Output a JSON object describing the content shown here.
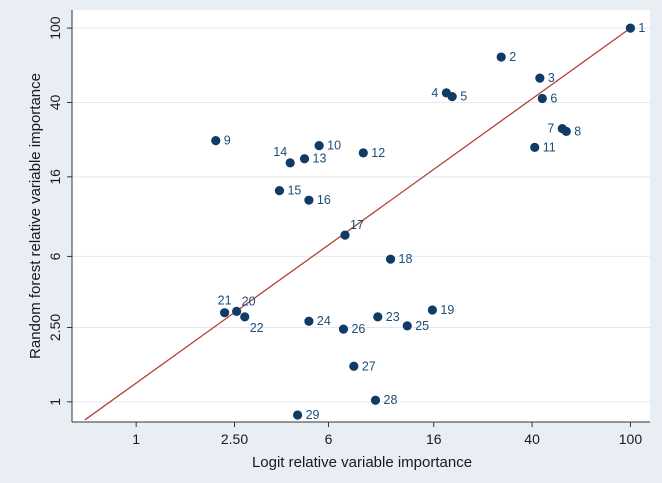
{
  "chart_data": {
    "type": "scatter",
    "title": "",
    "xlabel": "Logit relative variable importance",
    "ylabel": "Random forest relative variable importance",
    "x_scale": "log",
    "y_scale": "log",
    "xlim": [
      0.55,
      120
    ],
    "ylim": [
      0.78,
      125
    ],
    "x_ticks": [
      1,
      2.5,
      6,
      16,
      40,
      100
    ],
    "x_tick_labels": [
      "1",
      "2.50",
      "6",
      "16",
      "40",
      "100"
    ],
    "y_ticks": [
      1,
      2.5,
      6,
      16,
      40,
      100
    ],
    "y_tick_labels": [
      "1",
      "2.50",
      "6",
      "16",
      "40",
      "100"
    ],
    "grid": "horizontal",
    "legend": "none",
    "reference_line": {
      "from": [
        0.62,
        0.8
      ],
      "to": [
        100,
        100
      ]
    },
    "colors": {
      "points": "#0f3b66",
      "line": "#b5403a",
      "labels": "#1a4f7a",
      "plot_bg": "#ffffff",
      "page_bg": "#e8eef4"
    },
    "points": [
      {
        "label": "1",
        "x": 100,
        "y": 100,
        "pos": "right"
      },
      {
        "label": "2",
        "x": 30,
        "y": 70,
        "pos": "right"
      },
      {
        "label": "3",
        "x": 43,
        "y": 54,
        "pos": "right"
      },
      {
        "label": "4",
        "x": 18,
        "y": 45,
        "pos": "left"
      },
      {
        "label": "5",
        "x": 19,
        "y": 43,
        "pos": "right"
      },
      {
        "label": "6",
        "x": 44,
        "y": 42,
        "pos": "right"
      },
      {
        "label": "7",
        "x": 53,
        "y": 29,
        "pos": "left"
      },
      {
        "label": "8",
        "x": 55,
        "y": 28,
        "pos": "right"
      },
      {
        "label": "9",
        "x": 2.1,
        "y": 25,
        "pos": "right"
      },
      {
        "label": "10",
        "x": 5.5,
        "y": 23.5,
        "pos": "right"
      },
      {
        "label": "11",
        "x": 41,
        "y": 23,
        "pos": "right"
      },
      {
        "label": "12",
        "x": 8.3,
        "y": 21.5,
        "pos": "right"
      },
      {
        "label": "13",
        "x": 4.8,
        "y": 20,
        "pos": "right"
      },
      {
        "label": "14",
        "x": 4.2,
        "y": 19,
        "pos": "top-left"
      },
      {
        "label": "15",
        "x": 3.8,
        "y": 13.5,
        "pos": "right"
      },
      {
        "label": "16",
        "x": 5.0,
        "y": 12,
        "pos": "right"
      },
      {
        "label": "17",
        "x": 7.0,
        "y": 7.8,
        "pos": "top-right"
      },
      {
        "label": "18",
        "x": 10.7,
        "y": 5.8,
        "pos": "right"
      },
      {
        "label": "19",
        "x": 15.8,
        "y": 3.1,
        "pos": "right"
      },
      {
        "label": "20",
        "x": 2.55,
        "y": 3.05,
        "pos": "top-right"
      },
      {
        "label": "21",
        "x": 2.28,
        "y": 3.0,
        "pos": "top"
      },
      {
        "label": "22",
        "x": 2.75,
        "y": 2.85,
        "pos": "bottom-right"
      },
      {
        "label": "23",
        "x": 9.5,
        "y": 2.85,
        "pos": "right"
      },
      {
        "label": "24",
        "x": 5.0,
        "y": 2.7,
        "pos": "right"
      },
      {
        "label": "25",
        "x": 12.5,
        "y": 2.55,
        "pos": "right"
      },
      {
        "label": "26",
        "x": 6.9,
        "y": 2.45,
        "pos": "right"
      },
      {
        "label": "27",
        "x": 7.6,
        "y": 1.55,
        "pos": "right"
      },
      {
        "label": "28",
        "x": 9.3,
        "y": 1.02,
        "pos": "right"
      },
      {
        "label": "29",
        "x": 4.5,
        "y": 0.85,
        "pos": "right"
      }
    ]
  }
}
